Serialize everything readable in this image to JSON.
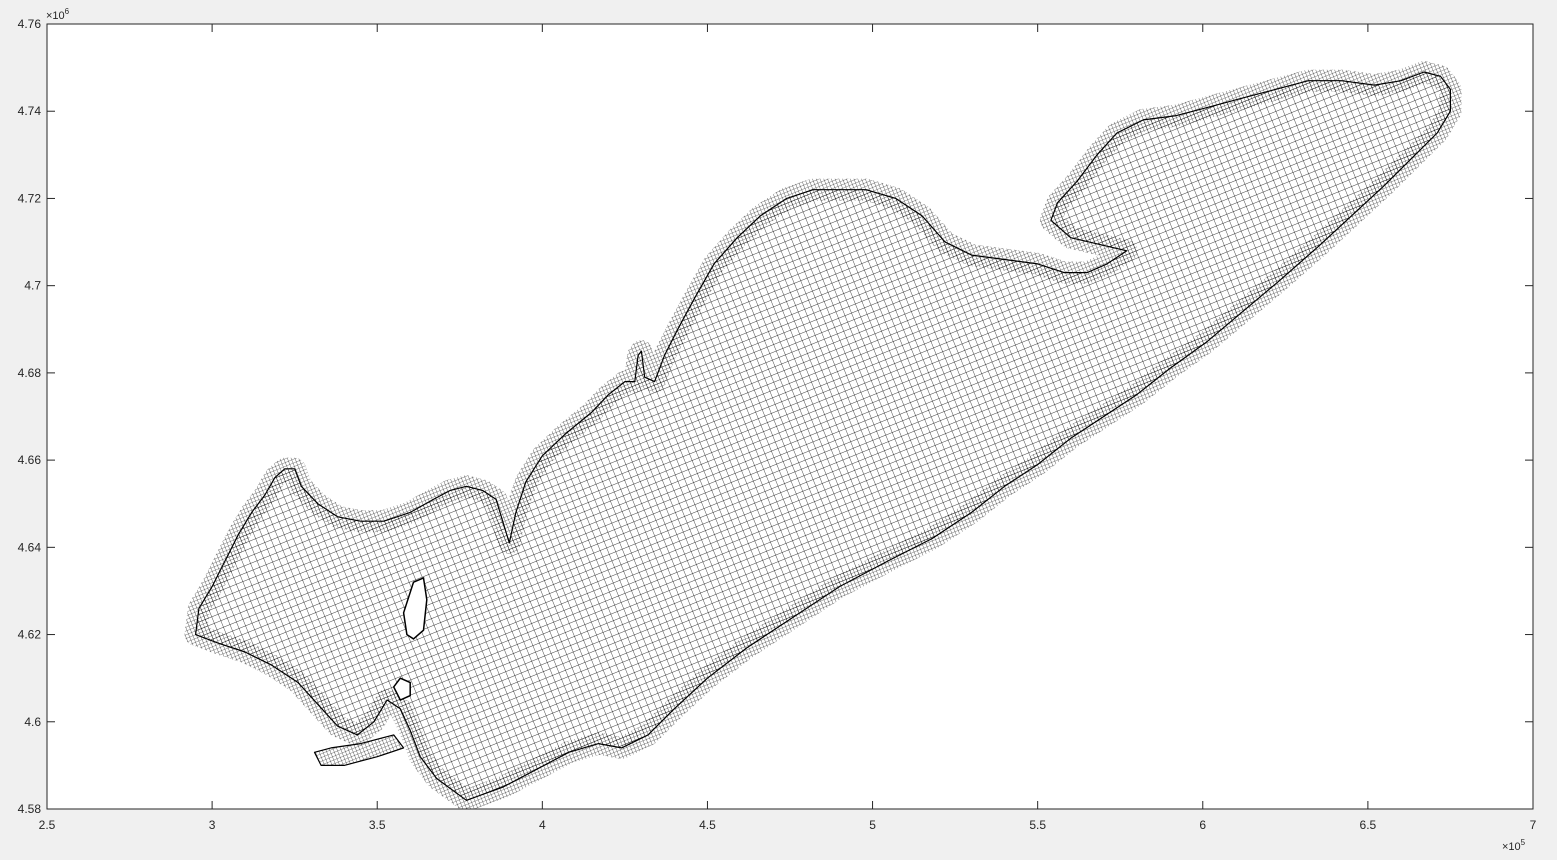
{
  "chart_data": {
    "type": "mesh",
    "title": "",
    "xlabel": "",
    "ylabel": "",
    "xlim": [
      250000,
      700000
    ],
    "ylim": [
      4580000,
      4760000
    ],
    "x_ticks": [
      "2.5",
      "3",
      "3.5",
      "4",
      "4.5",
      "5",
      "5.5",
      "6",
      "6.5",
      "7"
    ],
    "y_ticks": [
      "4.58",
      "4.6",
      "4.62",
      "4.64",
      "4.66",
      "4.68",
      "4.7",
      "4.72",
      "4.74",
      "4.76"
    ],
    "x_exponent": {
      "base": "×10",
      "power": "5"
    },
    "y_exponent": {
      "base": "×10",
      "power": "6"
    },
    "grid": false,
    "line_color": "#000000",
    "plot_background": "#ffffff",
    "figure_background": "#f0f0f0",
    "mesh_outline": [
      [
        295000,
        4620000
      ],
      [
        296000,
        4626000
      ],
      [
        300000,
        4631000
      ],
      [
        304000,
        4637000
      ],
      [
        308000,
        4643000
      ],
      [
        312000,
        4648000
      ],
      [
        316000,
        4652000
      ],
      [
        319000,
        4656000
      ],
      [
        322000,
        4658000
      ],
      [
        325000,
        4658000
      ],
      [
        327000,
        4654000
      ],
      [
        332000,
        4650000
      ],
      [
        338000,
        4647000
      ],
      [
        345000,
        4646000
      ],
      [
        352000,
        4646000
      ],
      [
        360000,
        4648000
      ],
      [
        367000,
        4651000
      ],
      [
        372000,
        4653000
      ],
      [
        377000,
        4654000
      ],
      [
        382000,
        4653000
      ],
      [
        386000,
        4651000
      ],
      [
        388000,
        4646000
      ],
      [
        390000,
        4641000
      ],
      [
        392000,
        4648000
      ],
      [
        395000,
        4655000
      ],
      [
        400000,
        4661000
      ],
      [
        407000,
        4666000
      ],
      [
        415000,
        4671000
      ],
      [
        420000,
        4675000
      ],
      [
        425000,
        4678000
      ],
      [
        428000,
        4678000
      ],
      [
        429000,
        4684000
      ],
      [
        430000,
        4685000
      ],
      [
        431000,
        4679000
      ],
      [
        434000,
        4678000
      ],
      [
        437000,
        4684000
      ],
      [
        441000,
        4690000
      ],
      [
        446000,
        4697000
      ],
      [
        452000,
        4705000
      ],
      [
        459000,
        4711000
      ],
      [
        466000,
        4716000
      ],
      [
        474000,
        4720000
      ],
      [
        482000,
        4722000
      ],
      [
        490000,
        4722000
      ],
      [
        498000,
        4722000
      ],
      [
        507000,
        4720000
      ],
      [
        515000,
        4716000
      ],
      [
        522000,
        4710000
      ],
      [
        530000,
        4707000
      ],
      [
        540000,
        4706000
      ],
      [
        550000,
        4705000
      ],
      [
        558000,
        4703000
      ],
      [
        565000,
        4703000
      ],
      [
        571000,
        4705000
      ],
      [
        577000,
        4708000
      ],
      [
        560000,
        4711000
      ],
      [
        554000,
        4715000
      ],
      [
        556000,
        4719000
      ],
      [
        562000,
        4724000
      ],
      [
        568000,
        4730000
      ],
      [
        574000,
        4735000
      ],
      [
        582000,
        4738000
      ],
      [
        592000,
        4739000
      ],
      [
        602000,
        4741000
      ],
      [
        612000,
        4743000
      ],
      [
        622000,
        4745000
      ],
      [
        632000,
        4747000
      ],
      [
        642000,
        4747000
      ],
      [
        652000,
        4746000
      ],
      [
        660000,
        4747000
      ],
      [
        667000,
        4749000
      ],
      [
        672000,
        4748000
      ],
      [
        675000,
        4745000
      ],
      [
        675000,
        4740000
      ],
      [
        671000,
        4735000
      ],
      [
        663000,
        4729000
      ],
      [
        655000,
        4723000
      ],
      [
        645000,
        4716000
      ],
      [
        635000,
        4709000
      ],
      [
        623000,
        4701000
      ],
      [
        612000,
        4694000
      ],
      [
        601000,
        4687000
      ],
      [
        590000,
        4681000
      ],
      [
        580000,
        4675000
      ],
      [
        570000,
        4670000
      ],
      [
        560000,
        4665000
      ],
      [
        550000,
        4659000
      ],
      [
        540000,
        4654000
      ],
      [
        530000,
        4648000
      ],
      [
        518000,
        4642000
      ],
      [
        505000,
        4637000
      ],
      [
        490000,
        4631000
      ],
      [
        476000,
        4624000
      ],
      [
        462000,
        4617000
      ],
      [
        450000,
        4610000
      ],
      [
        440000,
        4603000
      ],
      [
        432000,
        4597000
      ],
      [
        424000,
        4594000
      ],
      [
        417000,
        4595000
      ],
      [
        408000,
        4593000
      ],
      [
        398000,
        4589000
      ],
      [
        388000,
        4585000
      ],
      [
        377000,
        4582000
      ],
      [
        368000,
        4587000
      ],
      [
        363000,
        4592000
      ],
      [
        360000,
        4598000
      ],
      [
        357000,
        4603000
      ],
      [
        353000,
        4605000
      ],
      [
        349000,
        4600000
      ],
      [
        344000,
        4597000
      ],
      [
        338000,
        4599000
      ],
      [
        332000,
        4604000
      ],
      [
        326000,
        4609000
      ],
      [
        318000,
        4613000
      ],
      [
        310000,
        4616000
      ],
      [
        302000,
        4618000
      ]
    ],
    "mesh_extension": [
      [
        358000,
        4594000
      ],
      [
        350000,
        4592000
      ],
      [
        340000,
        4590000
      ],
      [
        333000,
        4590000
      ],
      [
        331000,
        4593000
      ],
      [
        336000,
        4594000
      ],
      [
        345000,
        4595000
      ],
      [
        355000,
        4597000
      ]
    ]
  }
}
